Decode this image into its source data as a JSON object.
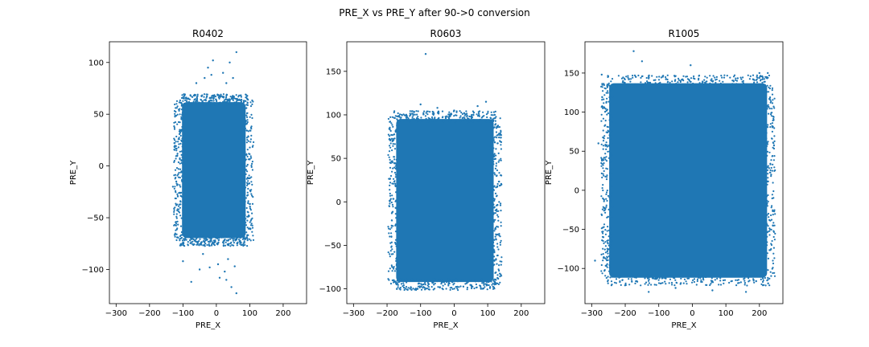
{
  "figure": {
    "suptitle": "PRE_X vs PRE_Y after 90->0 conversion"
  },
  "chart_data": [
    {
      "type": "scatter",
      "title": "R0402",
      "xlabel": "PRE_X",
      "ylabel": "PRE_Y",
      "xlim": [
        -320,
        270
      ],
      "ylim": [
        -133,
        120
      ],
      "xticks": [
        -300,
        -200,
        -100,
        0,
        100,
        200
      ],
      "yticks": [
        -100,
        -50,
        0,
        50,
        100
      ],
      "color": "#1f77b4",
      "dense_region": {
        "x": [
          -110,
          95
        ],
        "y": [
          -72,
          64
        ]
      },
      "outliers": [
        [
          -10,
          102
        ],
        [
          40,
          100
        ],
        [
          60,
          110
        ],
        [
          -25,
          95
        ],
        [
          -35,
          85
        ],
        [
          -15,
          88
        ],
        [
          20,
          90
        ],
        [
          30,
          80
        ],
        [
          50,
          85
        ],
        [
          -60,
          80
        ],
        [
          -130,
          -20
        ],
        [
          -120,
          -15
        ],
        [
          -100,
          -92
        ],
        [
          -75,
          -112
        ],
        [
          -50,
          -100
        ],
        [
          5,
          -95
        ],
        [
          10,
          -108
        ],
        [
          30,
          -110
        ],
        [
          45,
          -117
        ],
        [
          60,
          -123
        ],
        [
          25,
          -102
        ],
        [
          -20,
          -98
        ],
        [
          35,
          -90
        ],
        [
          -40,
          -85
        ],
        [
          55,
          -97
        ]
      ]
    },
    {
      "type": "scatter",
      "title": "R0603",
      "xlabel": "PRE_X",
      "ylabel": "PRE_Y",
      "xlim": [
        -320,
        270
      ],
      "ylim": [
        -117,
        184
      ],
      "xticks": [
        -300,
        -200,
        -100,
        0,
        100,
        200
      ],
      "yticks": [
        -100,
        -50,
        0,
        50,
        100,
        150
      ],
      "color": "#1f77b4",
      "dense_region": {
        "x": [
          -180,
          125
        ],
        "y": [
          -95,
          98
        ]
      },
      "outliers": [
        [
          -85,
          170
        ],
        [
          -100,
          112
        ],
        [
          95,
          115
        ],
        [
          -50,
          108
        ],
        [
          0,
          105
        ],
        [
          -160,
          95
        ],
        [
          70,
          110
        ],
        [
          -130,
          100
        ],
        [
          30,
          102
        ],
        [
          -180,
          -90
        ],
        [
          120,
          -95
        ],
        [
          -110,
          -100
        ],
        [
          80,
          -100
        ]
      ]
    },
    {
      "type": "scatter",
      "title": "R1005",
      "xlabel": "PRE_X",
      "ylabel": "PRE_Y",
      "xlim": [
        -320,
        270
      ],
      "ylim": [
        -145,
        190
      ],
      "xticks": [
        -300,
        -200,
        -100,
        0,
        100,
        200
      ],
      "yticks": [
        -100,
        -50,
        0,
        50,
        100,
        150
      ],
      "color": "#1f77b4",
      "dense_region": {
        "x": [
          -255,
          230
        ],
        "y": [
          -115,
          140
        ]
      },
      "outliers": [
        [
          -175,
          178
        ],
        [
          -150,
          165
        ],
        [
          -5,
          160
        ],
        [
          -270,
          148
        ],
        [
          -290,
          -90
        ],
        [
          -280,
          60
        ],
        [
          -265,
          -60
        ],
        [
          240,
          -45
        ],
        [
          235,
          20
        ],
        [
          225,
          150
        ],
        [
          -130,
          -130
        ],
        [
          160,
          -130
        ],
        [
          -50,
          -125
        ],
        [
          60,
          -128
        ],
        [
          200,
          150
        ]
      ]
    }
  ]
}
